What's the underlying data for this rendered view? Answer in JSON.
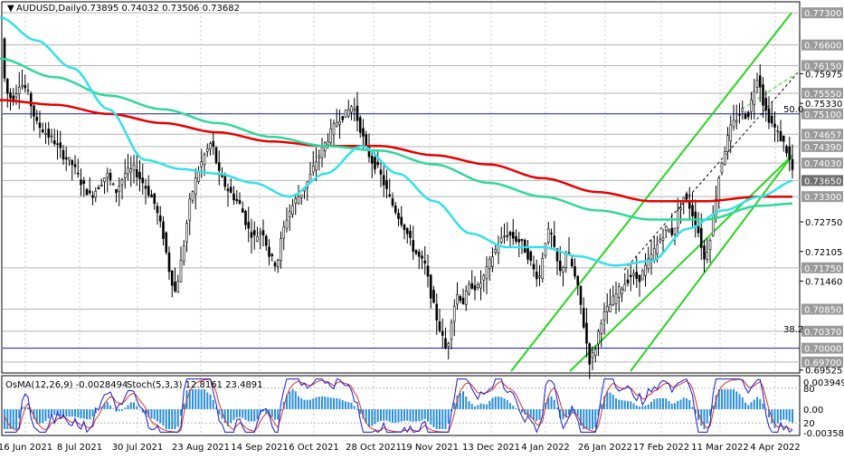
{
  "header": {
    "symbol": "AUDUSD,Daily",
    "ohlc": "0.73895 0.74032 0.73506 0.73682"
  },
  "indicator_header": {
    "osma": "OsMA(12,26,9) -0.0028494",
    "stoch": "Stoch(5,3,3) 12.8161 23.4891"
  },
  "fib_labels": {
    "fib50": "50.0",
    "fib382": "38.2"
  },
  "colors": {
    "candle": "#000000",
    "ema_red": "#e60000",
    "ema_cyan": "#34e0e8",
    "ema_green": "#2fd89a",
    "channel": "#2ad420",
    "hline_blue": "#1a1aa0",
    "hline_gray": "#b4b4b4",
    "osma_bar": "#2a8fd9",
    "stoch_main": "#1a1acc",
    "stoch_signal": "#d43030",
    "current_tag": "#707070"
  },
  "chart_data": {
    "type": "candlestick",
    "symbol": "AUDUSD",
    "timeframe": "Daily",
    "last_price": 0.7365,
    "price_axis_labels": [
      "0.77300",
      "0.76600",
      "0.76150",
      "0.75975",
      "0.75550",
      "0.75330",
      "0.75100",
      "0.74657",
      "0.74390",
      "0.74030",
      "0.73650",
      "0.73300",
      "0.72750",
      "0.72105",
      "0.71750",
      "0.71460",
      "0.70850",
      "0.70370",
      "0.70000",
      "0.69700",
      "0.69525"
    ],
    "highlighted_levels": [
      "0.77300",
      "0.76600",
      "0.76150",
      "0.75550",
      "0.75100",
      "0.74657",
      "0.74390",
      "0.74030",
      "0.73650",
      "0.73300",
      "0.71750",
      "0.70850",
      "0.70370",
      "0.70000",
      "0.69700"
    ],
    "date_axis_labels": [
      "16 Jun 2021",
      "8 Jul 2021",
      "30 Jul 2021",
      "23 Aug 2021",
      "14 Sep 2021",
      "6 Oct 2021",
      "28 Oct 2021",
      "19 Nov 2021",
      "13 Dec 2021",
      "4 Jan 2022",
      "26 Jan 2022",
      "17 Feb 2022",
      "11 Mar 2022",
      "4 Apr 2022"
    ],
    "horizontal_levels": [
      0.751,
      0.7
    ],
    "price_path": [
      [
        0,
        0.772
      ],
      [
        6,
        0.756
      ],
      [
        14,
        0.754
      ],
      [
        22,
        0.758
      ],
      [
        30,
        0.756
      ],
      [
        40,
        0.749
      ],
      [
        50,
        0.747
      ],
      [
        60,
        0.745
      ],
      [
        70,
        0.742
      ],
      [
        80,
        0.74
      ],
      [
        90,
        0.736
      ],
      [
        100,
        0.733
      ],
      [
        108,
        0.735
      ],
      [
        118,
        0.738
      ],
      [
        128,
        0.734
      ],
      [
        138,
        0.738
      ],
      [
        148,
        0.739
      ],
      [
        158,
        0.736
      ],
      [
        170,
        0.732
      ],
      [
        180,
        0.725
      ],
      [
        188,
        0.716
      ],
      [
        194,
        0.712
      ],
      [
        202,
        0.721
      ],
      [
        210,
        0.732
      ],
      [
        218,
        0.738
      ],
      [
        226,
        0.742
      ],
      [
        234,
        0.745
      ],
      [
        242,
        0.738
      ],
      [
        250,
        0.735
      ],
      [
        258,
        0.733
      ],
      [
        266,
        0.731
      ],
      [
        274,
        0.726
      ],
      [
        282,
        0.724
      ],
      [
        290,
        0.726
      ],
      [
        298,
        0.72
      ],
      [
        306,
        0.718
      ],
      [
        312,
        0.725
      ],
      [
        318,
        0.729
      ],
      [
        326,
        0.732
      ],
      [
        334,
        0.734
      ],
      [
        342,
        0.737
      ],
      [
        350,
        0.741
      ],
      [
        358,
        0.744
      ],
      [
        366,
        0.747
      ],
      [
        374,
        0.75
      ],
      [
        382,
        0.751
      ],
      [
        390,
        0.753
      ],
      [
        398,
        0.748
      ],
      [
        404,
        0.744
      ],
      [
        410,
        0.741
      ],
      [
        418,
        0.739
      ],
      [
        424,
        0.736
      ],
      [
        432,
        0.732
      ],
      [
        440,
        0.729
      ],
      [
        448,
        0.726
      ],
      [
        456,
        0.722
      ],
      [
        462,
        0.72
      ],
      [
        470,
        0.718
      ],
      [
        476,
        0.712
      ],
      [
        482,
        0.707
      ],
      [
        488,
        0.703
      ],
      [
        494,
        0.699
      ],
      [
        500,
        0.708
      ],
      [
        506,
        0.712
      ],
      [
        512,
        0.71
      ],
      [
        520,
        0.714
      ],
      [
        528,
        0.713
      ],
      [
        536,
        0.716
      ],
      [
        544,
        0.72
      ],
      [
        552,
        0.723
      ],
      [
        560,
        0.725
      ],
      [
        568,
        0.724
      ],
      [
        576,
        0.723
      ],
      [
        584,
        0.72
      ],
      [
        590,
        0.717
      ],
      [
        596,
        0.715
      ],
      [
        602,
        0.723
      ],
      [
        608,
        0.726
      ],
      [
        614,
        0.72
      ],
      [
        620,
        0.716
      ],
      [
        626,
        0.721
      ],
      [
        632,
        0.718
      ],
      [
        640,
        0.712
      ],
      [
        646,
        0.704
      ],
      [
        652,
        0.697
      ],
      [
        658,
        0.7
      ],
      [
        664,
        0.706
      ],
      [
        670,
        0.708
      ],
      [
        676,
        0.71
      ],
      [
        682,
        0.712
      ],
      [
        690,
        0.714
      ],
      [
        698,
        0.716
      ],
      [
        706,
        0.715
      ],
      [
        712,
        0.717
      ],
      [
        720,
        0.72
      ],
      [
        728,
        0.723
      ],
      [
        736,
        0.726
      ],
      [
        744,
        0.725
      ],
      [
        750,
        0.73
      ],
      [
        756,
        0.733
      ],
      [
        762,
        0.731
      ],
      [
        768,
        0.728
      ],
      [
        774,
        0.724
      ],
      [
        778,
        0.719
      ],
      [
        784,
        0.723
      ],
      [
        790,
        0.731
      ],
      [
        796,
        0.739
      ],
      [
        802,
        0.744
      ],
      [
        808,
        0.748
      ],
      [
        814,
        0.75
      ],
      [
        820,
        0.752
      ],
      [
        826,
        0.75
      ],
      [
        832,
        0.755
      ],
      [
        838,
        0.76
      ],
      [
        844,
        0.753
      ],
      [
        850,
        0.75
      ],
      [
        856,
        0.748
      ],
      [
        862,
        0.746
      ],
      [
        868,
        0.744
      ],
      [
        874,
        0.74
      ],
      [
        879,
        0.7368
      ]
    ],
    "moving_averages": [
      {
        "color": "#e60000",
        "points": [
          [
            0,
            0.754
          ],
          [
            60,
            0.753
          ],
          [
            120,
            0.751
          ],
          [
            180,
            0.749
          ],
          [
            240,
            0.747
          ],
          [
            300,
            0.745
          ],
          [
            360,
            0.744
          ],
          [
            420,
            0.744
          ],
          [
            480,
            0.742
          ],
          [
            540,
            0.74
          ],
          [
            600,
            0.737
          ],
          [
            660,
            0.734
          ],
          [
            720,
            0.732
          ],
          [
            780,
            0.732
          ],
          [
            840,
            0.733
          ],
          [
            879,
            0.733
          ]
        ]
      },
      {
        "color": "#2fd89a",
        "points": [
          [
            0,
            0.763
          ],
          [
            60,
            0.759
          ],
          [
            120,
            0.755
          ],
          [
            180,
            0.752
          ],
          [
            240,
            0.749
          ],
          [
            300,
            0.746
          ],
          [
            360,
            0.744
          ],
          [
            420,
            0.743
          ],
          [
            480,
            0.74
          ],
          [
            540,
            0.736
          ],
          [
            600,
            0.733
          ],
          [
            660,
            0.73
          ],
          [
            720,
            0.728
          ],
          [
            780,
            0.728
          ],
          [
            840,
            0.731
          ],
          [
            879,
            0.7315
          ]
        ]
      },
      {
        "color": "#34e0e8",
        "points": [
          [
            0,
            0.772
          ],
          [
            40,
            0.767
          ],
          [
            80,
            0.761
          ],
          [
            120,
            0.752
          ],
          [
            160,
            0.741
          ],
          [
            200,
            0.739
          ],
          [
            240,
            0.738
          ],
          [
            280,
            0.736
          ],
          [
            320,
            0.733
          ],
          [
            360,
            0.738
          ],
          [
            400,
            0.744
          ],
          [
            440,
            0.738
          ],
          [
            480,
            0.732
          ],
          [
            520,
            0.725
          ],
          [
            560,
            0.722
          ],
          [
            600,
            0.722
          ],
          [
            640,
            0.72
          ],
          [
            680,
            0.718
          ],
          [
            720,
            0.719
          ],
          [
            760,
            0.726
          ],
          [
            800,
            0.73
          ],
          [
            840,
            0.733
          ],
          [
            879,
            0.7365
          ]
        ]
      }
    ],
    "channel_lines": [
      [
        [
          565,
          0.695
        ],
        [
          875,
          0.773
        ]
      ],
      [
        [
          630,
          0.695
        ],
        [
          876,
          0.742
        ]
      ],
      [
        [
          697,
          0.695
        ],
        [
          876,
          0.742
        ]
      ]
    ],
    "osma": {
      "ylim": [
        -0.0035,
        0.0039
      ],
      "last": -0.0028494
    },
    "stoch": {
      "k": 12.8161,
      "d": 23.4891,
      "levels": [
        80,
        20
      ]
    },
    "indicator_axis_labels": [
      "0.0039494",
      "80",
      "20",
      "0.00",
      "-0.003584"
    ]
  }
}
